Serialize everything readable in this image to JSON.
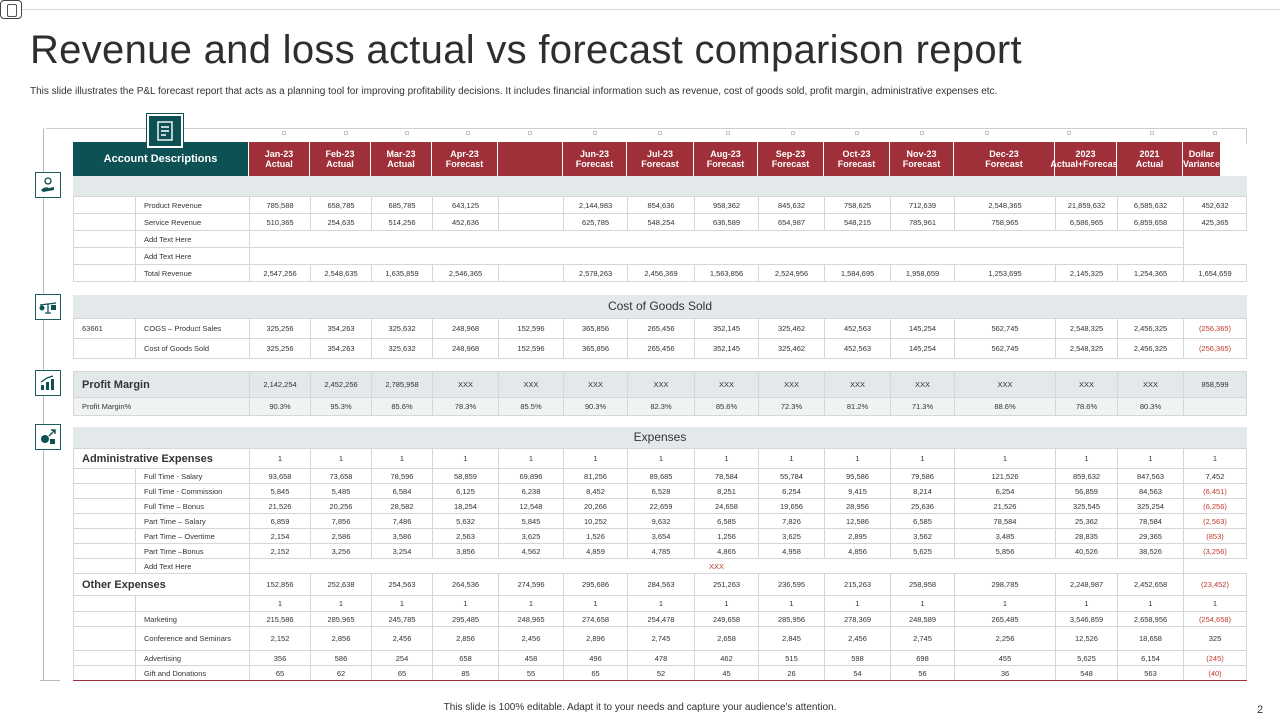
{
  "title": "Revenue and loss actual vs forecast comparison report",
  "subtitle": "This slide illustrates the P&L  forecast report that acts as a planning tool  for improving profitability decisions. It includes  financial information such as revenue, cost of goods sold, profit margin, administrative expenses etc.",
  "footer": "This slide is 100% editable.  Adapt it to your needs and capture your audience's attention.",
  "page_number": "2",
  "colors": {
    "accent_teal": "#0e5155",
    "accent_red": "#9f2f38",
    "band_gray": "#e3e8ea"
  },
  "icons": {
    "side": [
      "money-hand-icon",
      "scale-icon",
      "bar-chart-icon",
      "growth-money-icon"
    ],
    "header": "document-icon"
  },
  "header": {
    "account": "Account Descriptions",
    "columns": [
      {
        "l1": "Jan-23",
        "l2": "Actual"
      },
      {
        "l1": "Feb-23",
        "l2": "Actual"
      },
      {
        "l1": "Mar-23",
        "l2": "Actual"
      },
      {
        "l1": "Apr-23",
        "l2": "Forecast"
      },
      {
        "l1": "",
        "l2": ""
      },
      {
        "l1": "Jun-23",
        "l2": "Forecast"
      },
      {
        "l1": "Jul-23",
        "l2": "Forecast"
      },
      {
        "l1": "Aug-23",
        "l2": "Forecast"
      },
      {
        "l1": "Sep-23",
        "l2": "Forecast"
      },
      {
        "l1": "Oct-23",
        "l2": "Forecast"
      },
      {
        "l1": "Nov-23",
        "l2": "Forecast"
      },
      {
        "l1": "Dec-23",
        "l2": "Forecast"
      },
      {
        "l1": "2023",
        "l2": "Actual+Forecast"
      },
      {
        "l1": "2021",
        "l2": "Actual"
      },
      {
        "l1": "Dollar",
        "l2": "Variance"
      }
    ]
  },
  "revenue": {
    "rows": [
      {
        "label": "Product Revenue",
        "values": [
          "785,588",
          "658,785",
          "685,785",
          "643,125",
          "",
          "2,144,983",
          "854,636",
          "958,362",
          "845,632",
          "758,625",
          "712,639",
          "2,548,365",
          "21,859,632",
          "6,585,632",
          "452,632"
        ]
      },
      {
        "label": "Service Revenue",
        "values": [
          "510,365",
          "254,635",
          "514,256",
          "452,636",
          "",
          "625,785",
          "548,254",
          "636,589",
          "654,987",
          "548,215",
          "785,961",
          "758,965",
          "6,586,965",
          "6,859,658",
          "425,365"
        ]
      },
      {
        "label": "Add Text Here",
        "values": []
      },
      {
        "label": "Add Text Here",
        "values": []
      },
      {
        "label": "Total Revenue",
        "values": [
          "2,547,256",
          "2,548,635",
          "1,635,859",
          "2,546,365",
          "",
          "2,578,263",
          "2,456,369",
          "1,563,856",
          "2,524,956",
          "1,584,695",
          "1,958,659",
          "1,253,695",
          "2,145,325",
          "1,254,365",
          "1,654,659"
        ]
      }
    ]
  },
  "cogs": {
    "title": "Cost of Goods  Sold",
    "rows": [
      {
        "code": "63661",
        "label": "COGS – Product  Sales",
        "values": [
          "325,256",
          "354,263",
          "325,632",
          "248,968",
          "152,596",
          "365,856",
          "265,456",
          "352,145",
          "325,462",
          "452,563",
          "145,254",
          "562,745",
          "2,548,325",
          "2,456,325",
          "(256,365)"
        ]
      },
      {
        "code": "",
        "label": "Cost of Goods  Sold",
        "values": [
          "325,256",
          "354,263",
          "325,632",
          "248,968",
          "152,596",
          "365,856",
          "265,456",
          "352,145",
          "325,462",
          "452,563",
          "145,254",
          "562,745",
          "2,548,325",
          "2,456,325",
          "(256,365)"
        ]
      }
    ]
  },
  "profit": {
    "rows": [
      {
        "label": "Profit Margin",
        "values": [
          "2,142,254",
          "2,452,256",
          "2,785,958",
          "XXX",
          "XXX",
          "XXX",
          "XXX",
          "XXX",
          "XXX",
          "XXX",
          "XXX",
          "XXX",
          "XXX",
          "XXX",
          "858,599"
        ]
      },
      {
        "label": "Profit Margin%",
        "values": [
          "90.3%",
          "95.3%",
          "85.6%",
          "78.3%",
          "85.5%",
          "90.3%",
          "82.3%",
          "85.6%",
          "72.3%",
          "81.2%",
          "71.3%",
          "88.6%",
          "78.6%",
          "80.3%",
          ""
        ]
      }
    ]
  },
  "expenses": {
    "title": "Expenses",
    "admin_label": "Administrative Expenses",
    "admin_values": [
      "1",
      "1",
      "1",
      "1",
      "1",
      "1",
      "1",
      "1",
      "1",
      "1",
      "1",
      "1",
      "1",
      "1",
      "1"
    ],
    "admin_rows": [
      {
        "label": "Full Time - Salary",
        "values": [
          "93,658",
          "73,658",
          "78,596",
          "58,859",
          "69,896",
          "81,256",
          "89,685",
          "78,584",
          "55,784",
          "95,586",
          "79,586",
          "121,526",
          "859,632",
          "847,563",
          "7,452"
        ]
      },
      {
        "label": "Full Time - Commission",
        "values": [
          "5,845",
          "5,485",
          "6,584",
          "6,125",
          "6,238",
          "8,452",
          "6,528",
          "8,251",
          "6,254",
          "9,415",
          "8,214",
          "6,254",
          "56,859",
          "84,563",
          "(6,451)"
        ]
      },
      {
        "label": "Full Time – Bonus",
        "values": [
          "21,526",
          "20,256",
          "28,582",
          "18,254",
          "12,548",
          "20,266",
          "22,659",
          "24,658",
          "19,656",
          "28,956",
          "25,636",
          "21,526",
          "325,545",
          "325,254",
          "(6,256)"
        ]
      },
      {
        "label": "Part Time – Salary",
        "values": [
          "6,859",
          "7,856",
          "7,486",
          "5,632",
          "5,845",
          "10,252",
          "9,632",
          "6,585",
          "7,826",
          "12,586",
          "6,585",
          "78,584",
          "25,362",
          "78,584",
          "(2,563)"
        ]
      },
      {
        "label": "Part Time – Overtime",
        "values": [
          "2,154",
          "2,586",
          "3,586",
          "2,563",
          "3,625",
          "1,526",
          "3,654",
          "1,256",
          "3,625",
          "2,895",
          "3,562",
          "3,485",
          "28,835",
          "29,365",
          "(853)"
        ]
      },
      {
        "label": "Part Time –Bonus",
        "values": [
          "2,152",
          "3,256",
          "3,254",
          "3,856",
          "4,562",
          "4,859",
          "4,785",
          "4,865",
          "4,958",
          "4,856",
          "5,625",
          "5,856",
          "40,526",
          "38,526",
          "(3,256)"
        ]
      }
    ],
    "add_text_label": "Add Text Here",
    "add_text_value": "XXX",
    "other_label": "Other Expenses",
    "other_values": [
      "152,856",
      "252,638",
      "254,563",
      "264,536",
      "274,596",
      "295,686",
      "284,563",
      "251,263",
      "236,595",
      "215,263",
      "258,958",
      "298,785",
      "2,248,987",
      "2,452,658",
      "(23,452)"
    ],
    "other_ones": [
      "1",
      "1",
      "1",
      "1",
      "1",
      "1",
      "1",
      "1",
      "1",
      "1",
      "1",
      "1",
      "1",
      "1",
      "1"
    ],
    "other_rows": [
      {
        "label": "Marketing",
        "values": [
          "215,586",
          "285,965",
          "245,785",
          "295,485",
          "248,965",
          "274,658",
          "254,478",
          "249,658",
          "285,956",
          "278,369",
          "248,589",
          "265,485",
          "3,546,859",
          "2,658,956",
          "(254,658)"
        ]
      },
      {
        "label": "Conference  and Seminars",
        "values": [
          "2,152",
          "2,856",
          "2,456",
          "2,856",
          "2,456",
          "2,896",
          "2,745",
          "2,658",
          "2,845",
          "2,456",
          "2,745",
          "2,256",
          "12,526",
          "18,658",
          "325"
        ]
      },
      {
        "label": "Advertising",
        "values": [
          "356",
          "586",
          "254",
          "658",
          "458",
          "496",
          "478",
          "462",
          "515",
          "598",
          "698",
          "455",
          "5,625",
          "6,154",
          "(245)"
        ]
      },
      {
        "label": "Gift and Donations",
        "values": [
          "65",
          "62",
          "65",
          "85",
          "55",
          "65",
          "52",
          "45",
          "26",
          "54",
          "56",
          "36",
          "548",
          "563",
          "(40)"
        ]
      }
    ]
  }
}
